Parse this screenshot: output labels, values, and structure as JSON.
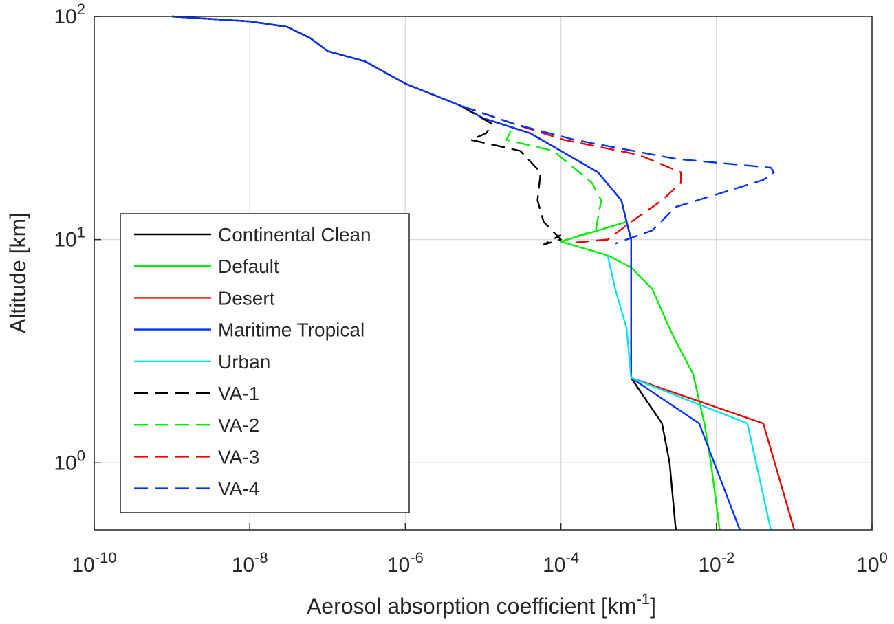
{
  "chart_data": {
    "type": "line",
    "xlabel": "Aerosol absorption coefficient [km",
    "xlabel_sup": "-1",
    "xlabel_close": "]",
    "ylabel": "Altitude [km]",
    "x_scale": "log",
    "y_scale": "log",
    "xlim": [
      1e-10,
      1
    ],
    "ylim": [
      0.5,
      100
    ],
    "grid": true,
    "legend_position": "lower-left",
    "x_ticks": [
      {
        "value": 1e-10,
        "base": "10",
        "exp": "-10"
      },
      {
        "value": 1e-08,
        "base": "10",
        "exp": "-8"
      },
      {
        "value": 1e-06,
        "base": "10",
        "exp": "-6"
      },
      {
        "value": 0.0001,
        "base": "10",
        "exp": "-4"
      },
      {
        "value": 0.01,
        "base": "10",
        "exp": "-2"
      },
      {
        "value": 1,
        "base": "10",
        "exp": "0"
      }
    ],
    "y_ticks": [
      {
        "value": 1,
        "base": "10",
        "exp": "0"
      },
      {
        "value": 10,
        "base": "10",
        "exp": "1"
      },
      {
        "value": 100,
        "base": "10",
        "exp": "2"
      }
    ],
    "series": [
      {
        "name": "Continental Clean",
        "color": "#000000",
        "dash": "solid",
        "points": [
          [
            1e-09,
            100
          ],
          [
            1e-08,
            95
          ],
          [
            3e-08,
            90
          ],
          [
            6e-08,
            80
          ],
          [
            1e-07,
            70
          ],
          [
            3e-07,
            63
          ],
          [
            1e-06,
            50
          ],
          [
            5e-06,
            40
          ],
          [
            1e-05,
            35
          ],
          [
            4e-05,
            30
          ],
          [
            0.0001,
            25
          ],
          [
            0.0003,
            20
          ],
          [
            0.0006,
            15
          ],
          [
            0.0007,
            12
          ],
          [
            0.0008,
            10
          ],
          [
            0.0008,
            8.5
          ],
          [
            0.0008,
            6
          ],
          [
            0.0008,
            4
          ],
          [
            0.0008,
            2.4
          ],
          [
            0.002,
            1.5
          ],
          [
            0.0025,
            1
          ],
          [
            0.003,
            0.5
          ]
        ]
      },
      {
        "name": "Default",
        "color": "#00ee00",
        "dash": "solid",
        "points": [
          [
            1e-09,
            100
          ],
          [
            1e-08,
            95
          ],
          [
            3e-08,
            90
          ],
          [
            6e-08,
            80
          ],
          [
            1e-07,
            70
          ],
          [
            3e-07,
            63
          ],
          [
            1e-06,
            50
          ],
          [
            5e-06,
            40
          ],
          [
            1e-05,
            35
          ],
          [
            4e-05,
            30
          ],
          [
            0.0001,
            25
          ],
          [
            0.0003,
            20
          ],
          [
            0.0006,
            15
          ],
          [
            0.0007,
            12
          ],
          [
            0.0001,
            9.8
          ],
          [
            0.0004,
            8.5
          ],
          [
            0.0008,
            7.5
          ],
          [
            0.0015,
            6
          ],
          [
            0.0025,
            4
          ],
          [
            0.003,
            3.5
          ],
          [
            0.005,
            2.5
          ],
          [
            0.007,
            1.5
          ],
          [
            0.0085,
            1
          ],
          [
            0.011,
            0.5
          ]
        ]
      },
      {
        "name": "Desert",
        "color": "#ee0000",
        "dash": "solid",
        "points": [
          [
            1e-09,
            100
          ],
          [
            1e-08,
            95
          ],
          [
            3e-08,
            90
          ],
          [
            6e-08,
            80
          ],
          [
            1e-07,
            70
          ],
          [
            3e-07,
            63
          ],
          [
            1e-06,
            50
          ],
          [
            5e-06,
            40
          ],
          [
            1e-05,
            35
          ],
          [
            4e-05,
            30
          ],
          [
            0.0001,
            25
          ],
          [
            0.0003,
            20
          ],
          [
            0.0006,
            15
          ],
          [
            0.0007,
            12
          ],
          [
            0.0008,
            10
          ],
          [
            0.0008,
            8.5
          ],
          [
            0.0008,
            6
          ],
          [
            0.0008,
            4
          ],
          [
            0.0008,
            2.4
          ],
          [
            0.04,
            1.5
          ],
          [
            0.1,
            0.5
          ]
        ]
      },
      {
        "name": "Maritime Tropical",
        "color": "#0033ff",
        "dash": "solid",
        "points": [
          [
            1e-09,
            100
          ],
          [
            1e-08,
            95
          ],
          [
            3e-08,
            90
          ],
          [
            6e-08,
            80
          ],
          [
            1e-07,
            70
          ],
          [
            3e-07,
            63
          ],
          [
            1e-06,
            50
          ],
          [
            5e-06,
            40
          ],
          [
            1e-05,
            35
          ],
          [
            4e-05,
            30
          ],
          [
            0.0001,
            25
          ],
          [
            0.0003,
            20
          ],
          [
            0.0006,
            15
          ],
          [
            0.0007,
            12
          ],
          [
            0.0008,
            10
          ],
          [
            0.0008,
            8.5
          ],
          [
            0.0008,
            6
          ],
          [
            0.0008,
            4
          ],
          [
            0.0008,
            2.4
          ],
          [
            0.006,
            1.5
          ],
          [
            0.02,
            0.5
          ]
        ]
      },
      {
        "name": "Urban",
        "color": "#00e5ee",
        "dash": "solid",
        "points": [
          [
            0.0004,
            8.5
          ],
          [
            0.0005,
            6
          ],
          [
            0.0007,
            4
          ],
          [
            0.0008,
            2.4
          ],
          [
            0.025,
            1.5
          ],
          [
            0.05,
            0.5
          ]
        ]
      },
      {
        "name": "VA-1",
        "color": "#000000",
        "dash": "dashed",
        "points": [
          [
            1e-09,
            100
          ],
          [
            1e-08,
            95
          ],
          [
            3e-08,
            90
          ],
          [
            6e-08,
            80
          ],
          [
            1e-07,
            70
          ],
          [
            3e-07,
            63
          ],
          [
            1e-06,
            50
          ],
          [
            5e-06,
            40
          ],
          [
            1.3e-05,
            33
          ],
          [
            1.1e-05,
            30
          ],
          [
            7e-06,
            28
          ],
          [
            3e-05,
            25
          ],
          [
            5.5e-05,
            20
          ],
          [
            5e-05,
            15
          ],
          [
            6e-05,
            12
          ],
          [
            0.0001,
            10
          ],
          [
            6e-05,
            9.5
          ],
          [
            0.0001,
            10.5
          ]
        ]
      },
      {
        "name": "VA-2",
        "color": "#00ee00",
        "dash": "dashed",
        "points": [
          [
            1e-09,
            100
          ],
          [
            1e-08,
            95
          ],
          [
            3e-08,
            90
          ],
          [
            6e-08,
            80
          ],
          [
            1e-07,
            70
          ],
          [
            3e-07,
            63
          ],
          [
            1e-06,
            50
          ],
          [
            5e-06,
            40
          ],
          [
            2.5e-05,
            33
          ],
          [
            2e-05,
            28
          ],
          [
            8e-05,
            25
          ],
          [
            0.00025,
            18
          ],
          [
            0.00033,
            15
          ],
          [
            0.00028,
            11
          ],
          [
            0.0001,
            9.8
          ]
        ]
      },
      {
        "name": "VA-3",
        "color": "#ee0000",
        "dash": "dashed",
        "points": [
          [
            1e-09,
            100
          ],
          [
            1e-08,
            95
          ],
          [
            3e-08,
            90
          ],
          [
            6e-08,
            80
          ],
          [
            1e-07,
            70
          ],
          [
            3e-07,
            63
          ],
          [
            1e-06,
            50
          ],
          [
            5e-06,
            40
          ],
          [
            2.5e-05,
            33
          ],
          [
            0.00011,
            28
          ],
          [
            0.001,
            24
          ],
          [
            0.0035,
            20
          ],
          [
            0.0035,
            18
          ],
          [
            0.002,
            15
          ],
          [
            0.0008,
            12
          ],
          [
            0.0004,
            10
          ],
          [
            0.00015,
            9.7
          ]
        ]
      },
      {
        "name": "VA-4",
        "color": "#0033ff",
        "dash": "dashed",
        "points": [
          [
            1e-09,
            100
          ],
          [
            1e-08,
            95
          ],
          [
            3e-08,
            90
          ],
          [
            6e-08,
            80
          ],
          [
            1e-07,
            70
          ],
          [
            3e-07,
            63
          ],
          [
            1e-06,
            50
          ],
          [
            5e-06,
            40
          ],
          [
            2.5e-05,
            33
          ],
          [
            0.00015,
            28
          ],
          [
            0.003,
            23
          ],
          [
            0.05,
            21
          ],
          [
            0.055,
            20
          ],
          [
            0.04,
            18.5
          ],
          [
            0.003,
            14
          ],
          [
            0.0015,
            11
          ],
          [
            0.0005,
            9.6
          ]
        ]
      }
    ]
  }
}
